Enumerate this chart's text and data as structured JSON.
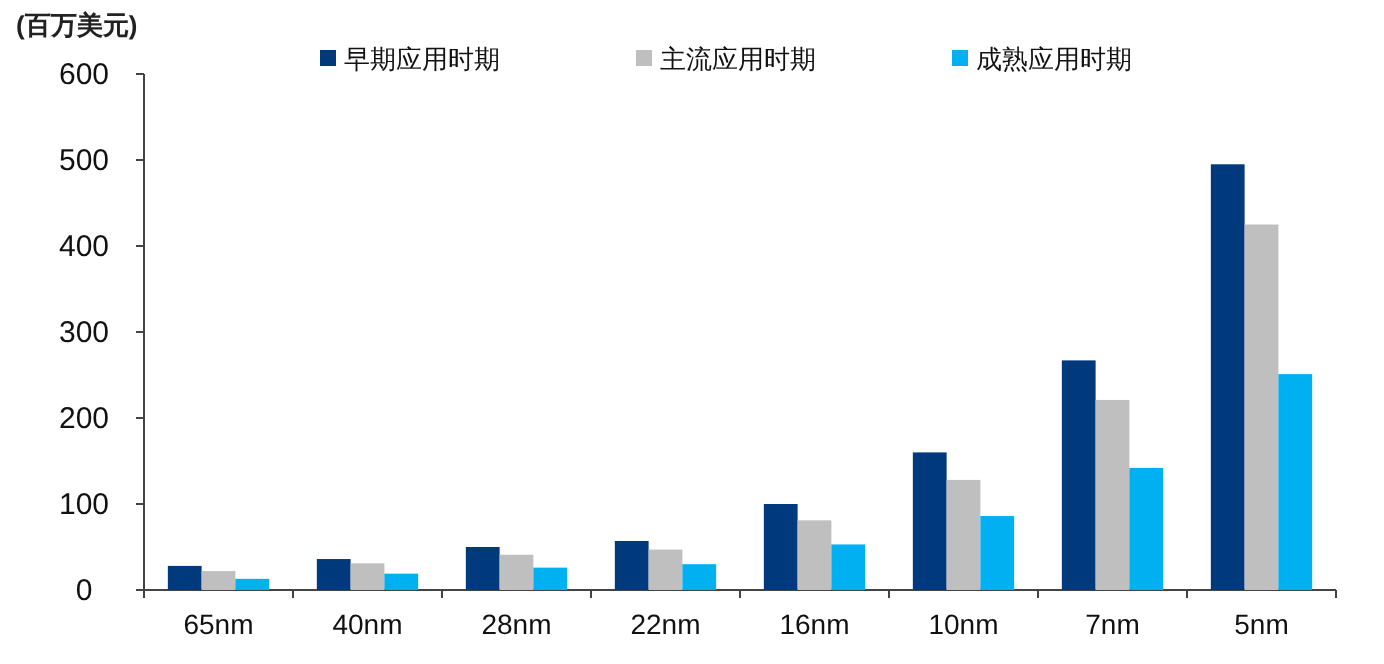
{
  "chart_data": {
    "type": "bar",
    "ylabel": "(百万美元)",
    "categories": [
      "65nm",
      "40nm",
      "28nm",
      "22nm",
      "16nm",
      "10nm",
      "7nm",
      "5nm"
    ],
    "series": [
      {
        "name": "早期应用时期",
        "color": "#003a7d",
        "values": [
          28,
          36,
          50,
          57,
          100,
          160,
          267,
          495
        ]
      },
      {
        "name": "主流应用时期",
        "color": "#bfbfbf",
        "values": [
          22,
          31,
          41,
          47,
          81,
          128,
          221,
          425
        ]
      },
      {
        "name": "成熟应用时期",
        "color": "#00b0f0",
        "values": [
          13,
          19,
          26,
          30,
          53,
          86,
          142,
          251
        ]
      }
    ],
    "ylim": [
      0,
      600
    ],
    "yticks": [
      0,
      100,
      200,
      300,
      400,
      500,
      600
    ],
    "grid": false,
    "legend": "top"
  }
}
